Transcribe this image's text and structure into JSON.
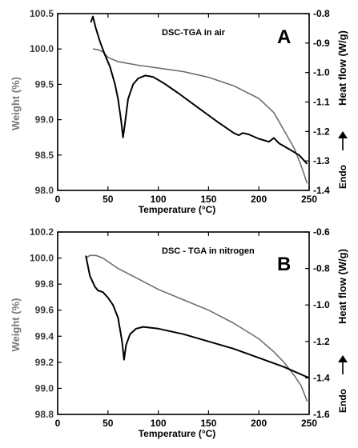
{
  "chart_data": [
    {
      "type": "line",
      "title": "DSC-TGA  in air",
      "panel_label": "A",
      "xlabel": "Temperature (°C)",
      "ylabel": "Weight (%)",
      "y2label": "Heat flow (W/g)",
      "endo_label": "Endo",
      "xlim": [
        0,
        250
      ],
      "ylim": [
        98.0,
        100.5
      ],
      "y2lim": [
        -1.4,
        -0.8
      ],
      "xticks": [
        "0",
        "50",
        "100",
        "150",
        "200",
        "250"
      ],
      "yticks": [
        "98.0",
        "98.5",
        "99.0",
        "99.5",
        "100.0",
        "100.5"
      ],
      "y2ticks": [
        "-0.8",
        "-0.9",
        "-1.0",
        "-1.1",
        "-1.2",
        "-1.3",
        "-1.4"
      ],
      "grid": false,
      "series": [
        {
          "axis": "weight",
          "color": "#6e6e6e",
          "points": [
            [
              35,
              100.0
            ],
            [
              40,
              99.99
            ],
            [
              45,
              99.96
            ],
            [
              50,
              99.88
            ],
            [
              60,
              99.82
            ],
            [
              80,
              99.77
            ],
            [
              100,
              99.73
            ],
            [
              125,
              99.68
            ],
            [
              150,
              99.6
            ],
            [
              175,
              99.48
            ],
            [
              200,
              99.3
            ],
            [
              215,
              99.1
            ],
            [
              225,
              98.85
            ],
            [
              235,
              98.6
            ],
            [
              242,
              98.35
            ],
            [
              248,
              98.1
            ]
          ]
        },
        {
          "axis": "heatflow",
          "color": "#000000",
          "points": [
            [
              33,
              -0.83
            ],
            [
              35,
              -0.81
            ],
            [
              38,
              -0.85
            ],
            [
              42,
              -0.895
            ],
            [
              47,
              -0.94
            ],
            [
              52,
              -0.98
            ],
            [
              57,
              -1.04
            ],
            [
              60,
              -1.09
            ],
            [
              63,
              -1.16
            ],
            [
              65,
              -1.22
            ],
            [
              67,
              -1.17
            ],
            [
              70,
              -1.09
            ],
            [
              75,
              -1.04
            ],
            [
              80,
              -1.02
            ],
            [
              87,
              -1.01
            ],
            [
              95,
              -1.015
            ],
            [
              105,
              -1.035
            ],
            [
              120,
              -1.07
            ],
            [
              140,
              -1.12
            ],
            [
              160,
              -1.17
            ],
            [
              175,
              -1.205
            ],
            [
              180,
              -1.213
            ],
            [
              184,
              -1.205
            ],
            [
              190,
              -1.21
            ],
            [
              200,
              -1.225
            ],
            [
              210,
              -1.235
            ],
            [
              215,
              -1.222
            ],
            [
              220,
              -1.24
            ],
            [
              230,
              -1.26
            ],
            [
              240,
              -1.28
            ],
            [
              248,
              -1.31
            ]
          ]
        }
      ]
    },
    {
      "type": "line",
      "title": "DSC - TGA  in nitrogen",
      "panel_label": "B",
      "xlabel": "Temperature (°C)",
      "ylabel": "Weight (%)",
      "y2label": "Heat flow (W/g)",
      "endo_label": "Endo",
      "xlim": [
        0,
        250
      ],
      "ylim": [
        98.8,
        100.2
      ],
      "y2lim": [
        -1.6,
        -0.6
      ],
      "xticks": [
        "0",
        "50",
        "100",
        "150",
        "200",
        "250"
      ],
      "yticks": [
        "98.8",
        "99.0",
        "99.2",
        "99.4",
        "99.6",
        "99.8",
        "100.0",
        "100.2"
      ],
      "y2ticks": [
        "-0.6",
        "-0.8",
        "-1.0",
        "-1.2",
        "-1.4",
        "-1.6"
      ],
      "grid": false,
      "series": [
        {
          "axis": "weight",
          "color": "#6e6e6e",
          "points": [
            [
              28,
              100.0
            ],
            [
              32,
              100.02
            ],
            [
              38,
              100.02
            ],
            [
              45,
              100.0
            ],
            [
              60,
              99.92
            ],
            [
              80,
              99.84
            ],
            [
              100,
              99.76
            ],
            [
              125,
              99.68
            ],
            [
              150,
              99.6
            ],
            [
              175,
              99.5
            ],
            [
              200,
              99.38
            ],
            [
              215,
              99.28
            ],
            [
              225,
              99.2
            ],
            [
              235,
              99.1
            ],
            [
              242,
              99.02
            ],
            [
              248,
              98.9
            ]
          ]
        },
        {
          "axis": "heatflow",
          "color": "#000000",
          "points": [
            [
              28,
              -0.73
            ],
            [
              32,
              -0.84
            ],
            [
              37,
              -0.9
            ],
            [
              40,
              -0.92
            ],
            [
              45,
              -0.93
            ],
            [
              50,
              -0.96
            ],
            [
              55,
              -1.0
            ],
            [
              60,
              -1.07
            ],
            [
              64,
              -1.2
            ],
            [
              66,
              -1.3
            ],
            [
              68,
              -1.22
            ],
            [
              72,
              -1.16
            ],
            [
              78,
              -1.13
            ],
            [
              85,
              -1.12
            ],
            [
              100,
              -1.13
            ],
            [
              125,
              -1.16
            ],
            [
              150,
              -1.2
            ],
            [
              175,
              -1.24
            ],
            [
              200,
              -1.29
            ],
            [
              225,
              -1.34
            ],
            [
              250,
              -1.4
            ]
          ]
        }
      ]
    }
  ]
}
